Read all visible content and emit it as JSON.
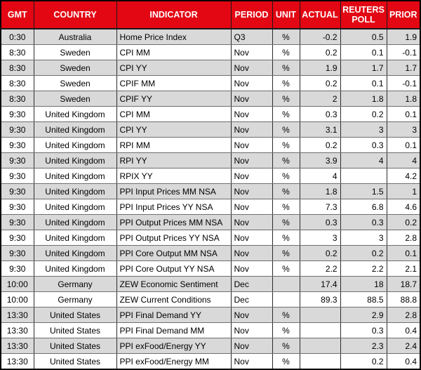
{
  "colors": {
    "header_bg": "#E30613",
    "header_text": "#FFFFFF",
    "row_alt_bg": "#D9D9D9",
    "row_bg": "#FFFFFF",
    "grid_line": "#2B2B2B",
    "outer_border": "#000000"
  },
  "chart_data": {
    "type": "table",
    "title": "",
    "columns": [
      "GMT",
      "COUNTRY",
      "INDICATOR",
      "PERIOD",
      "UNIT",
      "ACTUAL",
      "REUTERS POLL",
      "PRIOR"
    ],
    "column_keys": [
      "gmt",
      "country",
      "indicator",
      "period",
      "unit",
      "actual",
      "reuters-poll",
      "prior"
    ],
    "rows": [
      [
        "0:30",
        "Australia",
        "Home Price Index",
        "Q3",
        "%",
        "-0.2",
        "0.5",
        "1.9"
      ],
      [
        "8:30",
        "Sweden",
        "CPI MM",
        "Nov",
        "%",
        "0.2",
        "0.1",
        "-0.1"
      ],
      [
        "8:30",
        "Sweden",
        "CPI YY",
        "Nov",
        "%",
        "1.9",
        "1.7",
        "1.7"
      ],
      [
        "8:30",
        "Sweden",
        "CPIF MM",
        "Nov",
        "%",
        "0.2",
        "0.1",
        "-0.1"
      ],
      [
        "8:30",
        "Sweden",
        "CPIF YY",
        "Nov",
        "%",
        "2",
        "1.8",
        "1.8"
      ],
      [
        "9:30",
        "United Kingdom",
        "CPI MM",
        "Nov",
        "%",
        "0.3",
        "0.2",
        "0.1"
      ],
      [
        "9:30",
        "United Kingdom",
        "CPI YY",
        "Nov",
        "%",
        "3.1",
        "3",
        "3"
      ],
      [
        "9:30",
        "United Kingdom",
        "RPI MM",
        "Nov",
        "%",
        "0.2",
        "0.3",
        "0.1"
      ],
      [
        "9:30",
        "United Kingdom",
        "RPI YY",
        "Nov",
        "%",
        "3.9",
        "4",
        "4"
      ],
      [
        "9:30",
        "United Kingdom",
        "RPIX YY",
        "Nov",
        "%",
        "4",
        "",
        "4.2"
      ],
      [
        "9:30",
        "United Kingdom",
        "PPI Input Prices MM NSA",
        "Nov",
        "%",
        "1.8",
        "1.5",
        "1"
      ],
      [
        "9:30",
        "United Kingdom",
        "PPI Input Prices YY NSA",
        "Nov",
        "%",
        "7.3",
        "6.8",
        "4.6"
      ],
      [
        "9:30",
        "United Kingdom",
        "PPI Output Prices MM NSA",
        "Nov",
        "%",
        "0.3",
        "0.3",
        "0.2"
      ],
      [
        "9:30",
        "United Kingdom",
        "PPI Output Prices YY NSA",
        "Nov",
        "%",
        "3",
        "3",
        "2.8"
      ],
      [
        "9:30",
        "United Kingdom",
        "PPI Core Output MM NSA",
        "Nov",
        "%",
        "0.2",
        "0.2",
        "0.1"
      ],
      [
        "9:30",
        "United Kingdom",
        "PPI Core Output YY NSA",
        "Nov",
        "%",
        "2.2",
        "2.2",
        "2.1"
      ],
      [
        "10:00",
        "Germany",
        "ZEW Economic Sentiment",
        "Dec",
        "",
        "17.4",
        "18",
        "18.7"
      ],
      [
        "10:00",
        "Germany",
        "ZEW Current Conditions",
        "Dec",
        "",
        "89.3",
        "88.5",
        "88.8"
      ],
      [
        "13:30",
        "United States",
        "PPI Final Demand YY",
        "Nov",
        "%",
        "",
        "2.9",
        "2.8"
      ],
      [
        "13:30",
        "United States",
        "PPI Final Demand MM",
        "Nov",
        "%",
        "",
        "0.3",
        "0.4"
      ],
      [
        "13:30",
        "United States",
        "PPI exFood/Energy YY",
        "Nov",
        "%",
        "",
        "2.3",
        "2.4"
      ],
      [
        "13:30",
        "United States",
        "PPI exFood/Energy MM",
        "Nov",
        "%",
        "",
        "0.2",
        "0.4"
      ]
    ],
    "column_alignments": [
      "center",
      "center",
      "left",
      "left",
      "center",
      "right",
      "right",
      "right"
    ],
    "layout_hints": {
      "zebra_striping": true,
      "first_data_row_shaded": true,
      "grid": true
    }
  }
}
